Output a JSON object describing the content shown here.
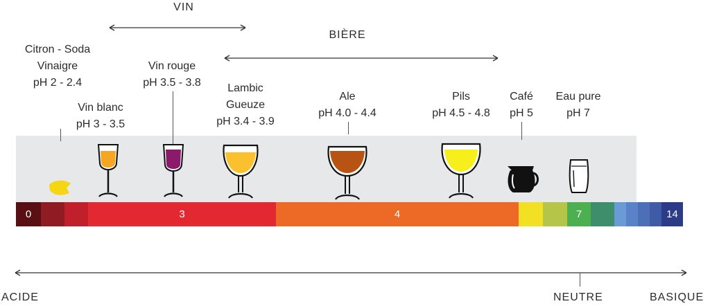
{
  "ranges": [
    {
      "label": "VIN"
    },
    {
      "label": "BIÈRE"
    }
  ],
  "items": [
    {
      "lines": [
        "Citron - Soda",
        "Vinaigre",
        "pH 2 - 2.4"
      ]
    },
    {
      "lines": [
        "Vin blanc",
        "pH 3 - 3.5"
      ],
      "liquid": "#f5a623"
    },
    {
      "lines": [
        "Vin rouge",
        "pH 3.5 - 3.8"
      ],
      "liquid": "#8c1a6a"
    },
    {
      "lines": [
        "Lambic",
        "Gueuze",
        "pH 3.4 - 3.9"
      ],
      "liquid": "#fbc02d"
    },
    {
      "lines": [
        "Ale",
        "pH 4.0 - 4.4"
      ],
      "liquid": "#b85413"
    },
    {
      "lines": [
        "Pils",
        "pH 4.5 - 4.8"
      ],
      "liquid": "#f7ef1b"
    },
    {
      "lines": [
        "Café",
        "pH 5"
      ]
    },
    {
      "lines": [
        "Eau pure",
        "pH 7"
      ]
    }
  ],
  "scale": {
    "labels": {
      "zero": "0",
      "three": "3",
      "four": "4",
      "seven": "7",
      "fourteen": "14"
    },
    "colors": [
      "#5a0f12",
      "#8e1c22",
      "#c0202c",
      "#e22830",
      "#ec6a26",
      "#f2e024",
      "#b5c54a",
      "#4caf50",
      "#3d8e6a",
      "#6b9bd6",
      "#5a82c8",
      "#4d6fb7",
      "#3f5ba6",
      "#2c3b88"
    ]
  },
  "axis": {
    "acide": "ACIDE",
    "neutre": "NEUTRE",
    "basique": "BASIQUE"
  },
  "icons": {
    "lemon": "lemon-icon",
    "coffee": "coffee-pot-icon",
    "water": "water-glass-icon"
  }
}
